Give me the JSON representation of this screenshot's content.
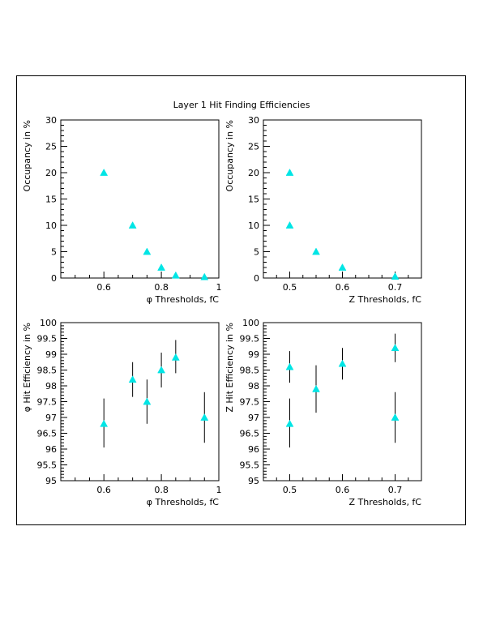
{
  "figure_title": "Layer 1 Hit Finding Efficiencies",
  "colors": {
    "marker": "#00e5e5",
    "errorbar": "#000000",
    "axis": "#000000"
  },
  "chart_data": [
    {
      "id": "phi_occupancy",
      "type": "scatter",
      "title": "",
      "xlabel": "φ Thresholds, fC",
      "ylabel": "Occupancy in %",
      "xlim": [
        0.45,
        1.0
      ],
      "ylim": [
        0,
        30
      ],
      "xticks": [
        0.6,
        0.8,
        1
      ],
      "xtick_labels": [
        "0.6",
        "0.8",
        "1"
      ],
      "yticks": [
        0,
        5,
        10,
        15,
        20,
        25,
        30
      ],
      "ytick_labels": [
        "0",
        "5",
        "10",
        "15",
        "20",
        "25",
        "30"
      ],
      "grid": false,
      "points": [
        {
          "x": 0.6,
          "y": 20
        },
        {
          "x": 0.7,
          "y": 10
        },
        {
          "x": 0.75,
          "y": 5
        },
        {
          "x": 0.8,
          "y": 2
        },
        {
          "x": 0.85,
          "y": 0.5
        },
        {
          "x": 0.95,
          "y": 0.2
        }
      ]
    },
    {
      "id": "z_occupancy",
      "type": "scatter",
      "title": "",
      "xlabel": "Z Thresholds, fC",
      "ylabel": "Occupancy in %",
      "xlim": [
        0.45,
        0.75
      ],
      "ylim": [
        0,
        30
      ],
      "xticks": [
        0.5,
        0.6,
        0.7
      ],
      "xtick_labels": [
        "0.5",
        "0.6",
        "0.7"
      ],
      "yticks": [
        0,
        5,
        10,
        15,
        20,
        25,
        30
      ],
      "ytick_labels": [
        "0",
        "5",
        "10",
        "15",
        "20",
        "25",
        "30"
      ],
      "grid": false,
      "points": [
        {
          "x": 0.5,
          "y": 20
        },
        {
          "x": 0.5,
          "y": 10
        },
        {
          "x": 0.55,
          "y": 5
        },
        {
          "x": 0.6,
          "y": 2
        },
        {
          "x": 0.7,
          "y": 0.3
        }
      ]
    },
    {
      "id": "phi_efficiency",
      "type": "scatter",
      "title": "",
      "xlabel": "φ Thresholds, fC",
      "ylabel": "φ Hit Efficiency in %",
      "xlim": [
        0.45,
        1.0
      ],
      "ylim": [
        95,
        100
      ],
      "xticks": [
        0.6,
        0.8,
        1
      ],
      "xtick_labels": [
        "0.6",
        "0.8",
        "1"
      ],
      "yticks": [
        95,
        95.5,
        96,
        96.5,
        97,
        97.5,
        98,
        98.5,
        99,
        99.5,
        100
      ],
      "ytick_labels": [
        "95",
        "95.5",
        "96",
        "96.5",
        "97",
        "97.5",
        "98",
        "98.5",
        "99",
        "99.5",
        "100"
      ],
      "grid": false,
      "points": [
        {
          "x": 0.6,
          "y": 96.8,
          "err_low": 96.05,
          "err_high": 97.6
        },
        {
          "x": 0.7,
          "y": 98.2,
          "err_low": 97.65,
          "err_high": 98.75
        },
        {
          "x": 0.75,
          "y": 97.5,
          "err_low": 96.8,
          "err_high": 98.2
        },
        {
          "x": 0.8,
          "y": 98.5,
          "err_low": 97.95,
          "err_high": 99.05
        },
        {
          "x": 0.85,
          "y": 98.9,
          "err_low": 98.4,
          "err_high": 99.45
        },
        {
          "x": 0.95,
          "y": 97.0,
          "err_low": 96.2,
          "err_high": 97.8
        }
      ]
    },
    {
      "id": "z_efficiency",
      "type": "scatter",
      "title": "",
      "xlabel": "Z Thresholds, fC",
      "ylabel": "Z Hit Efficiency in %",
      "xlim": [
        0.45,
        0.75
      ],
      "ylim": [
        95,
        100
      ],
      "xticks": [
        0.5,
        0.6,
        0.7
      ],
      "xtick_labels": [
        "0.5",
        "0.6",
        "0.7"
      ],
      "yticks": [
        95,
        95.5,
        96,
        96.5,
        97,
        97.5,
        98,
        98.5,
        99,
        99.5,
        100
      ],
      "ytick_labels": [
        "95",
        "95.5",
        "96",
        "96.5",
        "97",
        "97.5",
        "98",
        "98.5",
        "99",
        "99.5",
        "100"
      ],
      "grid": false,
      "points": [
        {
          "x": 0.5,
          "y": 98.6,
          "err_low": 98.1,
          "err_high": 99.1
        },
        {
          "x": 0.5,
          "y": 96.8,
          "err_low": 96.05,
          "err_high": 97.6
        },
        {
          "x": 0.55,
          "y": 97.9,
          "err_low": 97.15,
          "err_high": 98.65
        },
        {
          "x": 0.6,
          "y": 98.7,
          "err_low": 98.2,
          "err_high": 99.2
        },
        {
          "x": 0.7,
          "y": 99.2,
          "err_low": 98.75,
          "err_high": 99.65
        },
        {
          "x": 0.7,
          "y": 97.0,
          "err_low": 96.2,
          "err_high": 97.8
        }
      ]
    }
  ]
}
